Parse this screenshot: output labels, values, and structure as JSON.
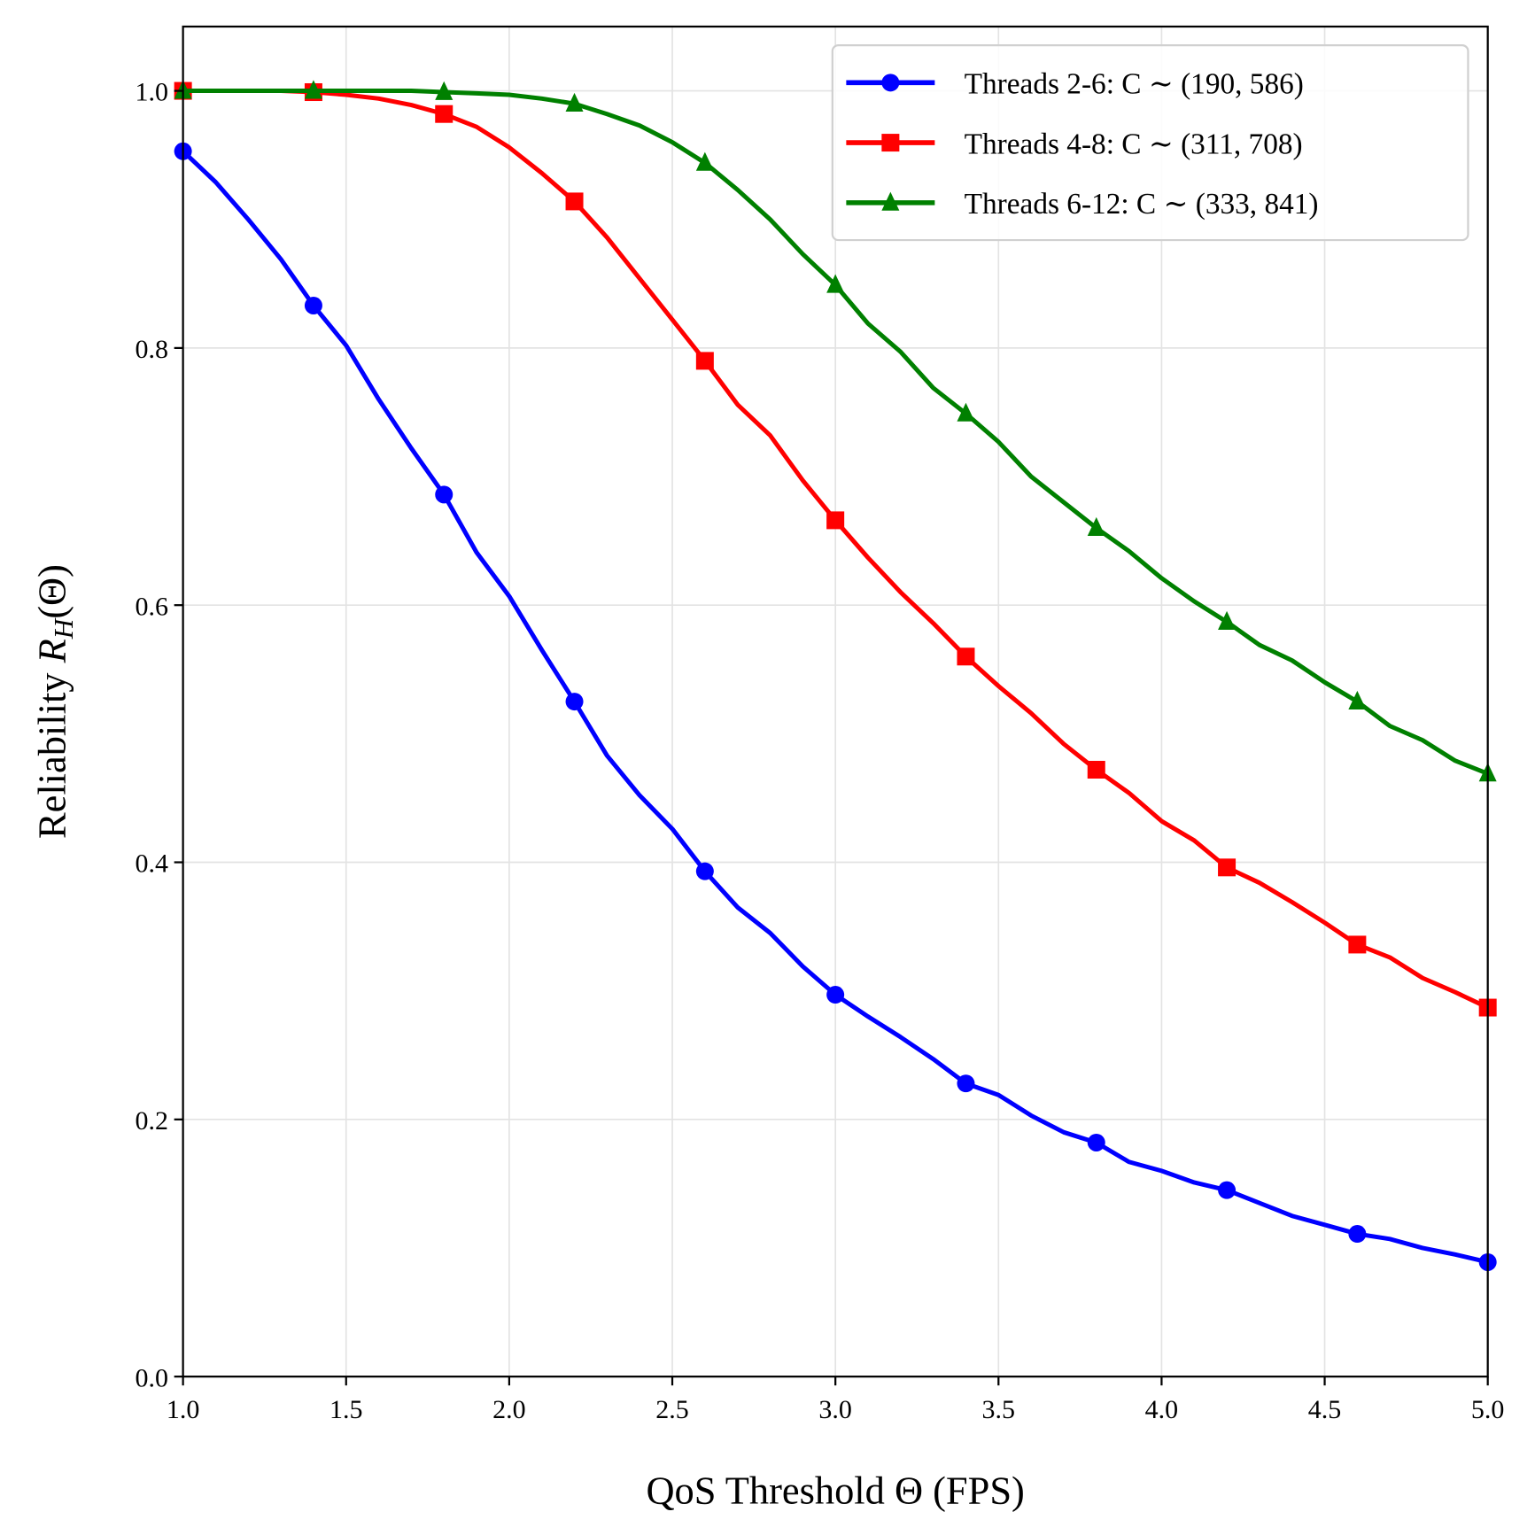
{
  "chart_data": {
    "type": "line",
    "title": "",
    "xlabel": "QoS Threshold Θ (FPS)",
    "ylabel": "Reliability R_H(Θ)",
    "ylabel_parts": {
      "text": "Reliability ",
      "var": "R",
      "sub": "H",
      "arg": "(Θ)"
    },
    "xlim": [
      1.0,
      5.0
    ],
    "ylim": [
      0.0,
      1.05
    ],
    "xticks": [
      "1.0",
      "1.5",
      "2.0",
      "2.5",
      "3.0",
      "3.5",
      "4.0",
      "4.5",
      "5.0"
    ],
    "yticks": [
      "0.0",
      "0.2",
      "0.4",
      "0.6",
      "0.8",
      "1.0"
    ],
    "grid": true,
    "legend_position": "top-right",
    "x": [
      1.0,
      1.1,
      1.2,
      1.3,
      1.4,
      1.5,
      1.6,
      1.7,
      1.8,
      1.9,
      2.0,
      2.1,
      2.2,
      2.3,
      2.4,
      2.5,
      2.6,
      2.7,
      2.8,
      2.9,
      3.0,
      3.1,
      3.2,
      3.3,
      3.4,
      3.5,
      3.6,
      3.7,
      3.8,
      3.9,
      4.0,
      4.1,
      4.2,
      4.3,
      4.4,
      4.5,
      4.6,
      4.7,
      4.8,
      4.9,
      5.0
    ],
    "marker_every": 4,
    "series": [
      {
        "name": "Threads 2-6: C ∼ (190, 586)",
        "color": "#0000ff",
        "marker": "circle",
        "values": [
          0.953,
          0.929,
          0.9,
          0.869,
          0.833,
          0.802,
          0.76,
          0.722,
          0.686,
          0.641,
          0.607,
          0.565,
          0.525,
          0.483,
          0.452,
          0.426,
          0.393,
          0.365,
          0.345,
          0.319,
          0.297,
          0.28,
          0.264,
          0.247,
          0.228,
          0.219,
          0.203,
          0.19,
          0.182,
          0.167,
          0.16,
          0.151,
          0.145,
          0.135,
          0.125,
          0.118,
          0.111,
          0.107,
          0.1,
          0.095,
          0.089
        ]
      },
      {
        "name": "Threads 4-8: C ∼ (311, 708)",
        "color": "#ff0000",
        "marker": "square",
        "values": [
          1.0,
          1.0,
          1.0,
          1.0,
          0.999,
          0.997,
          0.994,
          0.989,
          0.982,
          0.972,
          0.956,
          0.936,
          0.914,
          0.886,
          0.854,
          0.822,
          0.79,
          0.756,
          0.732,
          0.697,
          0.666,
          0.637,
          0.61,
          0.586,
          0.56,
          0.537,
          0.516,
          0.492,
          0.472,
          0.454,
          0.432,
          0.417,
          0.396,
          0.384,
          0.369,
          0.353,
          0.336,
          0.326,
          0.31,
          0.299,
          0.287
        ]
      },
      {
        "name": "Threads 6-12: C ∼ (333, 841)",
        "color": "#008000",
        "marker": "triangle",
        "values": [
          1.0,
          1.0,
          1.0,
          1.0,
          1.0,
          1.0,
          1.0,
          1.0,
          0.999,
          0.998,
          0.997,
          0.994,
          0.99,
          0.982,
          0.973,
          0.96,
          0.944,
          0.923,
          0.9,
          0.873,
          0.849,
          0.819,
          0.797,
          0.769,
          0.749,
          0.727,
          0.7,
          0.68,
          0.66,
          0.642,
          0.621,
          0.603,
          0.587,
          0.569,
          0.557,
          0.54,
          0.525,
          0.506,
          0.495,
          0.479,
          0.469
        ]
      }
    ]
  }
}
